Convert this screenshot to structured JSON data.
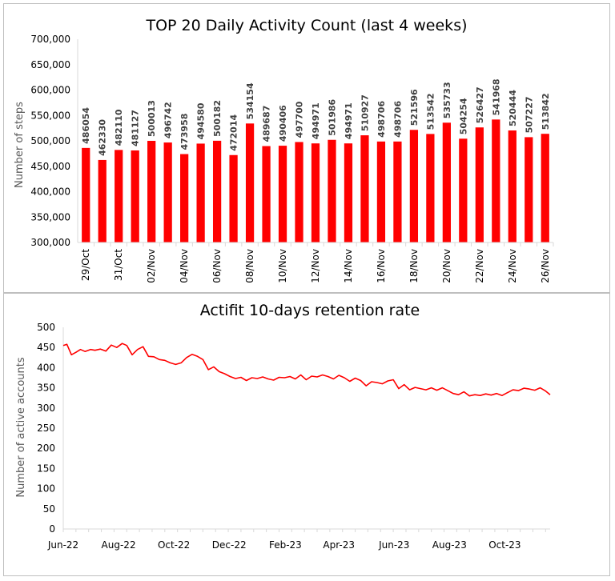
{
  "chart_data": [
    {
      "type": "bar",
      "title": "TOP 20 Daily Activity Count (last 4 weeks)",
      "ylabel": "Number of steps",
      "xlabel": "",
      "ylim": [
        300000,
        700000
      ],
      "yticks": [
        300000,
        350000,
        400000,
        450000,
        500000,
        550000,
        600000,
        650000,
        700000
      ],
      "ytick_labels": [
        "300,000",
        "350,000",
        "400,000",
        "450,000",
        "500,000",
        "550,000",
        "600,000",
        "650,000",
        "700,000"
      ],
      "bar_color": "#ff0000",
      "categories": [
        "29/Oct",
        "30/Oct",
        "31/Oct",
        "01/Nov",
        "02/Nov",
        "03/Nov",
        "04/Nov",
        "05/Nov",
        "06/Nov",
        "07/Nov",
        "08/Nov",
        "09/Nov",
        "10/Nov",
        "11/Nov",
        "12/Nov",
        "13/Nov",
        "14/Nov",
        "15/Nov",
        "16/Nov",
        "17/Nov",
        "18/Nov",
        "19/Nov",
        "20/Nov",
        "21/Nov",
        "22/Nov",
        "23/Nov",
        "24/Nov",
        "25/Nov",
        "26/Nov"
      ],
      "shown_tick_labels": [
        "29/Oct",
        "31/Oct",
        "02/Nov",
        "04/Nov",
        "06/Nov",
        "08/Nov",
        "10/Nov",
        "12/Nov",
        "14/Nov",
        "16/Nov",
        "18/Nov",
        "20/Nov",
        "22/Nov",
        "24/Nov",
        "26/Nov"
      ],
      "values": [
        486054,
        462330,
        482110,
        481127,
        500013,
        496742,
        473958,
        494580,
        500182,
        472014,
        534154,
        489687,
        490406,
        497700,
        494971,
        501986,
        494971,
        510927,
        498706,
        498706,
        521596,
        513542,
        535733,
        504254,
        526427,
        541968,
        520444,
        507227,
        513842
      ],
      "data_labels": [
        "486054",
        "462330",
        "482110",
        "481127",
        "500013",
        "496742",
        "473958",
        "494580",
        "500182",
        "472014",
        "534154",
        "489687",
        "490406",
        "497700",
        "494971",
        "501986",
        "494971",
        "510927",
        "498706",
        "498706",
        "521596",
        "513542",
        "535733",
        "504254",
        "526427",
        "541968",
        "520444",
        "507227",
        "513842"
      ]
    },
    {
      "type": "line",
      "title": "Actifit 10-days retention rate",
      "ylabel": "Number of active accounts",
      "xlabel": "",
      "ylim": [
        0,
        500
      ],
      "yticks": [
        0,
        50,
        100,
        150,
        200,
        250,
        300,
        350,
        400,
        450,
        500
      ],
      "line_color": "#ff0000",
      "xlim": [
        "2022-06-01",
        "2023-11-20"
      ],
      "xticks": [
        "2022-06-01",
        "2022-08-01",
        "2022-10-01",
        "2022-12-01",
        "2023-02-01",
        "2023-04-01",
        "2023-06-01",
        "2023-08-01",
        "2023-10-01"
      ],
      "xtick_labels": [
        "Jun-22",
        "Aug-22",
        "Oct-22",
        "Dec-22",
        "Feb-23",
        "Apr-23",
        "Jun-23",
        "Aug-23",
        "Oct-23"
      ],
      "series": [
        {
          "x": [
            "2022-06-01",
            "2022-06-05",
            "2022-06-10",
            "2022-06-15",
            "2022-06-20",
            "2022-06-25",
            "2022-07-01",
            "2022-07-06",
            "2022-07-12",
            "2022-07-18",
            "2022-07-24",
            "2022-07-30",
            "2022-08-05",
            "2022-08-10",
            "2022-08-16",
            "2022-08-22",
            "2022-08-28",
            "2022-09-03",
            "2022-09-09",
            "2022-09-15",
            "2022-09-21",
            "2022-09-27",
            "2022-10-03",
            "2022-10-09",
            "2022-10-15",
            "2022-10-21",
            "2022-10-27",
            "2022-11-02",
            "2022-11-08",
            "2022-11-14",
            "2022-11-20",
            "2022-11-26",
            "2022-12-02",
            "2022-12-08",
            "2022-12-14",
            "2022-12-20",
            "2022-12-26",
            "2023-01-01",
            "2023-01-07",
            "2023-01-13",
            "2023-01-19",
            "2023-01-25",
            "2023-01-31",
            "2023-02-06",
            "2023-02-12",
            "2023-02-18",
            "2023-02-24",
            "2023-03-02",
            "2023-03-08",
            "2023-03-14",
            "2023-03-20",
            "2023-03-26",
            "2023-04-01",
            "2023-04-07",
            "2023-04-13",
            "2023-04-19",
            "2023-04-25",
            "2023-05-01",
            "2023-05-07",
            "2023-05-13",
            "2023-05-19",
            "2023-05-25",
            "2023-05-31",
            "2023-06-06",
            "2023-06-12",
            "2023-06-18",
            "2023-06-24",
            "2023-06-30",
            "2023-07-06",
            "2023-07-12",
            "2023-07-18",
            "2023-07-24",
            "2023-07-30",
            "2023-08-05",
            "2023-08-11",
            "2023-08-17",
            "2023-08-23",
            "2023-08-29",
            "2023-09-04",
            "2023-09-10",
            "2023-09-16",
            "2023-09-22",
            "2023-09-28",
            "2023-10-04",
            "2023-10-10",
            "2023-10-16",
            "2023-10-22",
            "2023-10-28",
            "2023-11-03",
            "2023-11-09",
            "2023-11-15",
            "2023-11-20"
          ],
          "y": [
            455,
            458,
            432,
            438,
            445,
            440,
            445,
            443,
            446,
            441,
            456,
            450,
            460,
            455,
            432,
            445,
            452,
            428,
            427,
            420,
            418,
            412,
            408,
            412,
            425,
            433,
            428,
            420,
            395,
            402,
            390,
            385,
            378,
            373,
            376,
            368,
            375,
            373,
            377,
            372,
            369,
            376,
            375,
            378,
            372,
            382,
            370,
            379,
            377,
            382,
            378,
            372,
            381,
            375,
            366,
            374,
            368,
            355,
            365,
            363,
            360,
            367,
            370,
            348,
            358,
            345,
            351,
            348,
            345,
            350,
            344,
            350,
            343,
            336,
            333,
            340,
            330,
            333,
            331,
            335,
            332,
            336,
            331,
            338,
            345,
            343,
            349,
            347,
            344,
            350,
            342,
            333
          ]
        }
      ]
    }
  ]
}
